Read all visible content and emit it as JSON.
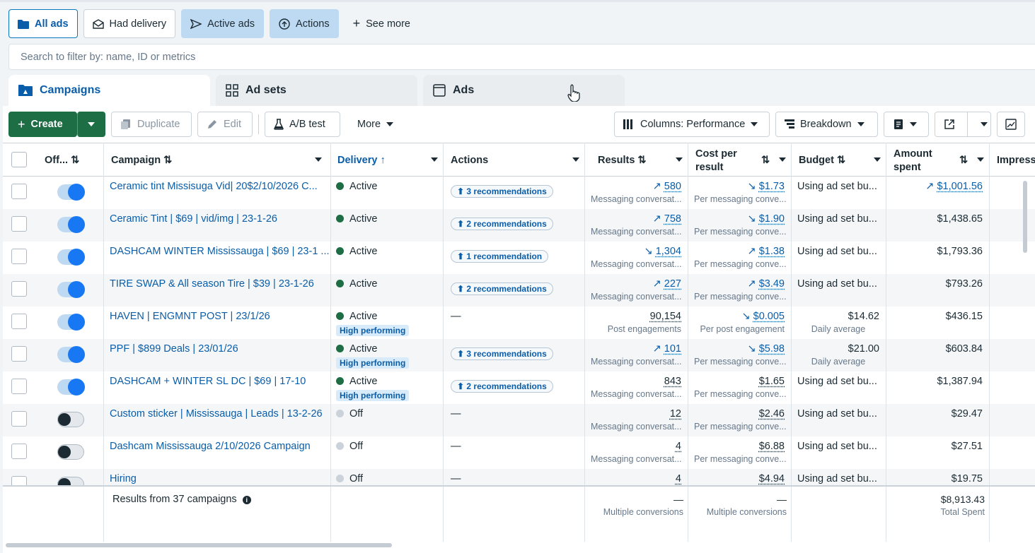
{
  "filters": {
    "all_ads": "All ads",
    "had_delivery": "Had delivery",
    "active_ads": "Active ads",
    "actions": "Actions",
    "see_more": "See more"
  },
  "search": {
    "placeholder": "Search to filter by: name, ID or metrics"
  },
  "tabs": {
    "campaigns": "Campaigns",
    "ad_sets": "Ad sets",
    "ads": "Ads"
  },
  "toolbar": {
    "create": "Create",
    "duplicate": "Duplicate",
    "edit": "Edit",
    "ab_test": "A/B test",
    "more": "More",
    "columns": "Columns: Performance",
    "breakdown": "Breakdown"
  },
  "headers": {
    "off_on": "Off...",
    "campaign": "Campaign",
    "delivery": "Delivery",
    "actions": "Actions",
    "results": "Results",
    "cost_per_result_1": "Cost per",
    "cost_per_result_2": "result",
    "budget": "Budget",
    "amount_spent_1": "Amount",
    "amount_spent_2": "spent",
    "impressions": "Impress"
  },
  "rows": [
    {
      "name": "Ceramic tint Missisuga Vid| 20$2/10/2026 C...",
      "delivery": "Active",
      "hp": "",
      "actions": "3 recommendations",
      "results": "580",
      "results_sub": "Messaging conversat...",
      "cost": "$1.73",
      "cost_sub": "Per messaging conve...",
      "budget": "Using ad set bu...",
      "budget_sub": "",
      "spent": "$1,001.56"
    },
    {
      "name": "Ceramic Tint | $69 | vid/img | 23-1-26",
      "delivery": "Active",
      "hp": "",
      "actions": "2 recommendations",
      "results": "758",
      "results_sub": "Messaging conversat...",
      "cost": "$1.90",
      "cost_sub": "Per messaging conve...",
      "budget": "Using ad set bu...",
      "budget_sub": "",
      "spent": "$1,438.65"
    },
    {
      "name": "DASHCAM WINTER Mississauga | $69 | 23-1 ...",
      "delivery": "Active",
      "hp": "",
      "actions": "1 recommendation",
      "results": "1,304",
      "results_sub": "Messaging conversat...",
      "cost": "$1.38",
      "cost_sub": "Per messaging conve...",
      "budget": "Using ad set bu...",
      "budget_sub": "",
      "spent": "$1,793.36"
    },
    {
      "name": "TIRE SWAP & All season Tire | $39 | 23-1-26",
      "delivery": "Active",
      "hp": "",
      "actions": "2 recommendations",
      "results": "227",
      "results_sub": "Messaging conversat...",
      "cost": "$3.49",
      "cost_sub": "Per messaging conve...",
      "budget": "Using ad set bu...",
      "budget_sub": "",
      "spent": "$793.26"
    },
    {
      "name": "HAVEN | ENGMNT POST | 23/1/26",
      "delivery": "Active",
      "hp": "High performing",
      "actions": "—",
      "results": "90,154",
      "results_sub": "Post engagements",
      "cost": "$0.005",
      "cost_sub": "Per post engagement",
      "budget": "$14.62",
      "budget_sub": "Daily average",
      "spent": "$436.15"
    },
    {
      "name": "PPF | $899 Deals | 23/01/26",
      "delivery": "Active",
      "hp": "High performing",
      "actions": "3 recommendations",
      "results": "101",
      "results_sub": "Messaging conversat...",
      "cost": "$5.98",
      "cost_sub": "Per messaging conve...",
      "budget": "$21.00",
      "budget_sub": "Daily average",
      "spent": "$603.84"
    },
    {
      "name": "DASHCAM + WINTER SL DC | $69 | 17-10",
      "delivery": "Active",
      "hp": "High performing",
      "actions": "2 recommendations",
      "results": "843",
      "results_sub": "Messaging conversat...",
      "cost": "$1.65",
      "cost_sub": "Per messaging conve...",
      "budget": "Using ad set bu...",
      "budget_sub": "",
      "spent": "$1,387.94"
    },
    {
      "name": "Custom sticker | Mississauga | Leads | 13-2-26",
      "delivery": "Off",
      "hp": "",
      "actions": "—",
      "results": "12",
      "results_sub": "Messaging conversat...",
      "cost": "$2.46",
      "cost_sub": "Per messaging conve...",
      "budget": "Using ad set bu...",
      "budget_sub": "",
      "spent": "$29.47"
    },
    {
      "name": "Dashcam Mississauga 2/10/2026 Campaign",
      "delivery": "Off",
      "hp": "",
      "actions": "—",
      "results": "4",
      "results_sub": "Messaging conversat...",
      "cost": "$6.88",
      "cost_sub": "Per messaging conve...",
      "budget": "Using ad set bu...",
      "budget_sub": "",
      "spent": "$27.51"
    },
    {
      "name": "Hiring",
      "delivery": "Off",
      "hp": "",
      "actions": "—",
      "results": "4",
      "results_sub": "",
      "cost": "$4.94",
      "cost_sub": "",
      "budget": "Using ad set bu...",
      "budget_sub": "",
      "spent": "$19.75"
    }
  ],
  "footer": {
    "summary": "Results from 37 campaigns",
    "results": "—",
    "results_sub": "Multiple conversions",
    "cost": "—",
    "cost_sub": "Multiple conversions",
    "spent": "$8,913.43",
    "spent_sub": "Total Spent"
  }
}
